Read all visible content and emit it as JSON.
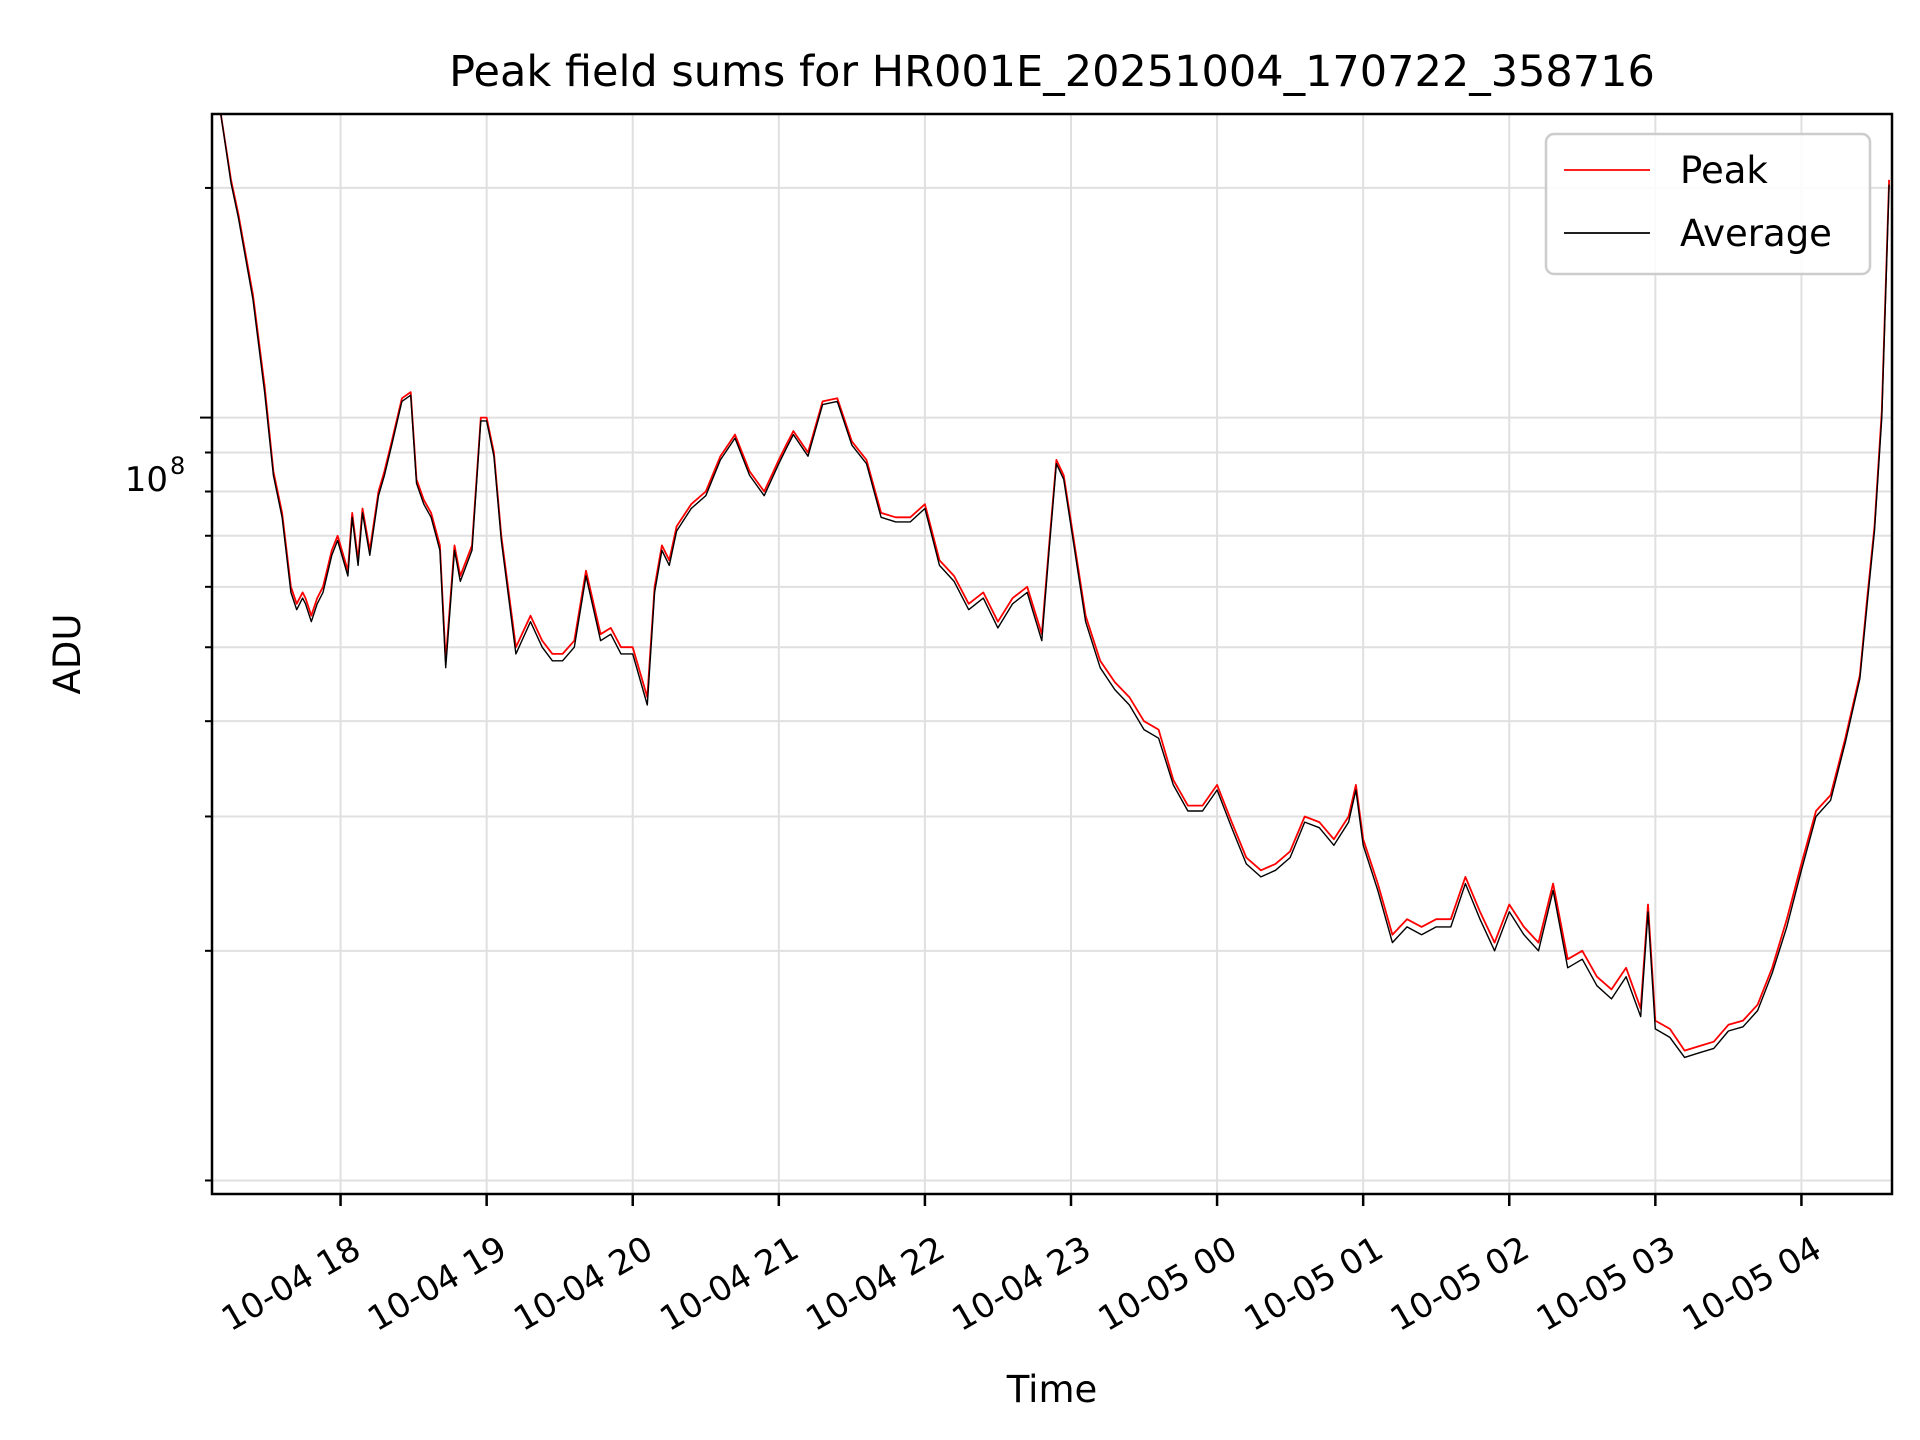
{
  "chart_data": {
    "type": "line",
    "title": "Peak field sums for HR001E_20251004_170722_358716",
    "xlabel": "Time",
    "ylabel": "ADU",
    "yscale": "log",
    "ylim": [
      9600000.0,
      250000000.0
    ],
    "xlim": [
      -0.88,
      10.62
    ],
    "x_unit": "hours since 2025-10-04 18:00",
    "xticks": [
      0,
      1,
      2,
      3,
      4,
      5,
      6,
      7,
      8,
      9,
      10
    ],
    "xtick_labels": [
      "10-04 18",
      "10-04 19",
      "10-04 20",
      "10-04 21",
      "10-04 22",
      "10-04 23",
      "10-05 00",
      "10-05 01",
      "10-05 02",
      "10-05 03",
      "10-05 04"
    ],
    "ytick_major": {
      "value": 100000000.0,
      "base": "10",
      "exponent": "8"
    },
    "yticks_minor": [
      10000000.0,
      20000000.0,
      30000000.0,
      40000000.0,
      50000000.0,
      60000000.0,
      70000000.0,
      80000000.0,
      90000000.0,
      200000000.0
    ],
    "grid": true,
    "legend_position": "upper right",
    "series": [
      {
        "name": "Peak",
        "color": "#ff0000",
        "x": [
          -0.82,
          -0.75,
          -0.7,
          -0.6,
          -0.52,
          -0.46,
          -0.4,
          -0.34,
          -0.3,
          -0.26,
          -0.24,
          -0.2,
          -0.16,
          -0.12,
          -0.06,
          -0.02,
          0.05,
          0.08,
          0.12,
          0.15,
          0.2,
          0.26,
          0.3,
          0.35,
          0.42,
          0.48,
          0.52,
          0.57,
          0.62,
          0.68,
          0.72,
          0.78,
          0.82,
          0.9,
          0.96,
          1.0,
          1.05,
          1.1,
          1.2,
          1.3,
          1.38,
          1.45,
          1.52,
          1.6,
          1.68,
          1.78,
          1.85,
          1.92,
          2.0,
          2.1,
          2.15,
          2.2,
          2.25,
          2.3,
          2.4,
          2.5,
          2.6,
          2.7,
          2.8,
          2.9,
          3.0,
          3.05,
          3.1,
          3.2,
          3.3,
          3.4,
          3.5,
          3.6,
          3.7,
          3.8,
          3.9,
          4.0,
          4.1,
          4.2,
          4.3,
          4.4,
          4.5,
          4.6,
          4.7,
          4.8,
          4.85,
          4.9,
          4.95,
          5.0,
          5.1,
          5.2,
          5.3,
          5.4,
          5.5,
          5.6,
          5.7,
          5.8,
          5.9,
          6.0,
          6.1,
          6.2,
          6.3,
          6.4,
          6.5,
          6.6,
          6.7,
          6.8,
          6.9,
          6.95,
          7.0,
          7.1,
          7.2,
          7.3,
          7.4,
          7.5,
          7.6,
          7.7,
          7.8,
          7.9,
          8.0,
          8.1,
          8.2,
          8.3,
          8.4,
          8.5,
          8.6,
          8.7,
          8.8,
          8.9,
          8.95,
          9.0,
          9.1,
          9.2,
          9.3,
          9.4,
          9.5,
          9.6,
          9.7,
          9.8,
          9.9,
          10.0,
          10.1,
          10.2,
          10.3,
          10.4,
          10.45,
          10.5,
          10.55,
          10.6
        ],
        "values": [
          250000000.0,
          205000000.0,
          185000000.0,
          145000000.0,
          110000000.0,
          85000000.0,
          75000000.0,
          60000000.0,
          57000000.0,
          59000000.0,
          58000000.0,
          55000000.0,
          58000000.0,
          60000000.0,
          67000000.0,
          70000000.0,
          63000000.0,
          75000000.0,
          65000000.0,
          76000000.0,
          67000000.0,
          80000000.0,
          85000000.0,
          93000000.0,
          106000000.0,
          108000000.0,
          83000000.0,
          78000000.0,
          75000000.0,
          68000000.0,
          48000000.0,
          68000000.0,
          62000000.0,
          68000000.0,
          100000000.0,
          100000000.0,
          90000000.0,
          70000000.0,
          50000000.0,
          55000000.0,
          51000000.0,
          49000000.0,
          49000000.0,
          51000000.0,
          63000000.0,
          52000000.0,
          53000000.0,
          50000000.0,
          50000000.0,
          43000000.0,
          60000000.0,
          68000000.0,
          65000000.0,
          72000000.0,
          77000000.0,
          80000000.0,
          89000000.0,
          95000000.0,
          85000000.0,
          80000000.0,
          88000000.0,
          92000000.0,
          96000000.0,
          90000000.0,
          105000000.0,
          106000000.0,
          93000000.0,
          88000000.0,
          75000000.0,
          74000000.0,
          74000000.0,
          77000000.0,
          65000000.0,
          62000000.0,
          57000000.0,
          59000000.0,
          54000000.0,
          58000000.0,
          60000000.0,
          52000000.0,
          68000000.0,
          88000000.0,
          84000000.0,
          73000000.0,
          55000000.0,
          48000000.0,
          45000000.0,
          43000000.0,
          40000000.0,
          39000000.0,
          33500000.0,
          31000000.0,
          31000000.0,
          33000000.0,
          29500000.0,
          26500000.0,
          25500000.0,
          26000000.0,
          27000000.0,
          30000000.0,
          29500000.0,
          28000000.0,
          30000000.0,
          33000000.0,
          28000000.0,
          24500000.0,
          21000000.0,
          22000000.0,
          21500000.0,
          22000000.0,
          22000000.0,
          25000000.0,
          22500000.0,
          20500000.0,
          23000000.0,
          21500000.0,
          20500000.0,
          24500000.0,
          19500000.0,
          20000000.0,
          18500000.0,
          17800000.0,
          19000000.0,
          16800000.0,
          23000000.0,
          16200000.0,
          15800000.0,
          14800000.0,
          15000000.0,
          15200000.0,
          16000000.0,
          16200000.0,
          17000000.0,
          19000000.0,
          22000000.0,
          26000000.0,
          30500000.0,
          32000000.0,
          38000000.0,
          46000000.0,
          58000000.0,
          72000000.0,
          102000000.0,
          205000000.0
        ]
      },
      {
        "name": "Average",
        "color": "#000000",
        "x": [
          -0.82,
          -0.75,
          -0.7,
          -0.6,
          -0.52,
          -0.46,
          -0.4,
          -0.34,
          -0.3,
          -0.26,
          -0.24,
          -0.2,
          -0.16,
          -0.12,
          -0.06,
          -0.02,
          0.05,
          0.08,
          0.12,
          0.15,
          0.2,
          0.26,
          0.3,
          0.35,
          0.42,
          0.48,
          0.52,
          0.57,
          0.62,
          0.68,
          0.72,
          0.78,
          0.82,
          0.9,
          0.96,
          1.0,
          1.05,
          1.1,
          1.2,
          1.3,
          1.38,
          1.45,
          1.52,
          1.6,
          1.68,
          1.78,
          1.85,
          1.92,
          2.0,
          2.1,
          2.15,
          2.2,
          2.25,
          2.3,
          2.4,
          2.5,
          2.6,
          2.7,
          2.8,
          2.9,
          3.0,
          3.05,
          3.1,
          3.2,
          3.3,
          3.4,
          3.5,
          3.6,
          3.7,
          3.8,
          3.9,
          4.0,
          4.1,
          4.2,
          4.3,
          4.4,
          4.5,
          4.6,
          4.7,
          4.8,
          4.85,
          4.9,
          4.95,
          5.0,
          5.1,
          5.2,
          5.3,
          5.4,
          5.5,
          5.6,
          5.7,
          5.8,
          5.9,
          6.0,
          6.1,
          6.2,
          6.3,
          6.4,
          6.5,
          6.6,
          6.7,
          6.8,
          6.9,
          6.95,
          7.0,
          7.1,
          7.2,
          7.3,
          7.4,
          7.5,
          7.6,
          7.7,
          7.8,
          7.9,
          8.0,
          8.1,
          8.2,
          8.3,
          8.4,
          8.5,
          8.6,
          8.7,
          8.8,
          8.9,
          8.95,
          9.0,
          9.1,
          9.2,
          9.3,
          9.4,
          9.5,
          9.6,
          9.7,
          9.8,
          9.9,
          10.0,
          10.1,
          10.2,
          10.3,
          10.4,
          10.45,
          10.5,
          10.55,
          10.6
        ],
        "values": [
          250000000.0,
          203000000.0,
          183000000.0,
          143000000.0,
          108000000.0,
          84000000.0,
          74000000.0,
          59000000.0,
          56000000.0,
          58000000.0,
          57000000.0,
          54000000.0,
          57000000.0,
          59000000.0,
          66000000.0,
          69000000.0,
          62000000.0,
          74000000.0,
          64000000.0,
          75000000.0,
          66000000.0,
          79000000.0,
          84000000.0,
          92000000.0,
          105000000.0,
          107000000.0,
          82000000.0,
          77000000.0,
          74000000.0,
          67000000.0,
          47000000.0,
          67000000.0,
          61000000.0,
          67000000.0,
          99000000.0,
          99000000.0,
          89000000.0,
          69000000.0,
          49000000.0,
          54000000.0,
          50000000.0,
          48000000.0,
          48000000.0,
          50000000.0,
          62000000.0,
          51000000.0,
          52000000.0,
          49000000.0,
          49000000.0,
          42000000.0,
          59000000.0,
          67000000.0,
          64000000.0,
          71000000.0,
          76000000.0,
          79000000.0,
          88000000.0,
          94000000.0,
          84000000.0,
          79000000.0,
          87000000.0,
          91000000.0,
          95000000.0,
          89000000.0,
          104000000.0,
          105000000.0,
          92000000.0,
          87000000.0,
          74000000.0,
          73000000.0,
          73000000.0,
          76000000.0,
          64000000.0,
          61000000.0,
          56000000.0,
          58000000.0,
          53000000.0,
          57000000.0,
          59000000.0,
          51000000.0,
          67000000.0,
          87000000.0,
          83000000.0,
          72000000.0,
          54000000.0,
          47000000.0,
          44000000.0,
          42000000.0,
          39000000.0,
          38000000.0,
          33000000.0,
          30500000.0,
          30500000.0,
          32500000.0,
          29000000.0,
          26000000.0,
          25000000.0,
          25500000.0,
          26500000.0,
          29500000.0,
          29000000.0,
          27500000.0,
          29500000.0,
          32500000.0,
          27500000.0,
          24000000.0,
          20500000.0,
          21500000.0,
          21000000.0,
          21500000.0,
          21500000.0,
          24500000.0,
          22000000.0,
          20000000.0,
          22500000.0,
          21000000.0,
          20000000.0,
          24000000.0,
          19000000.0,
          19500000.0,
          18000000.0,
          17300000.0,
          18500000.0,
          16400000.0,
          22500000.0,
          15800000.0,
          15400000.0,
          14500000.0,
          14700000.0,
          14900000.0,
          15700000.0,
          15900000.0,
          16700000.0,
          18700000.0,
          21500000.0,
          25500000.0,
          30000000.0,
          31500000.0,
          37500000.0,
          45500000.0,
          57000000.0,
          71000000.0,
          100000000.0,
          202000000.0
        ]
      }
    ]
  }
}
